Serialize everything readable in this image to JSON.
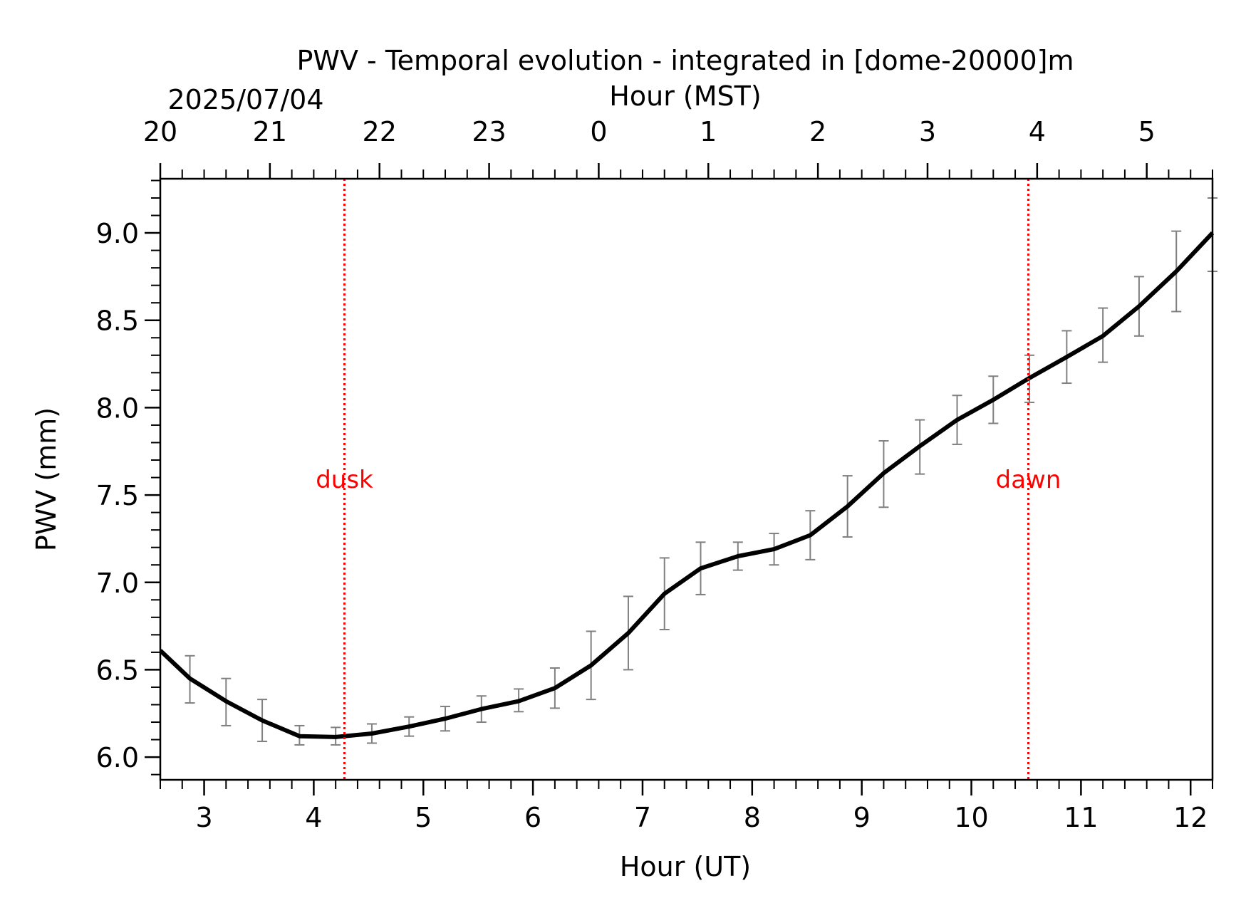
{
  "chart_data": {
    "type": "line",
    "title": "PWV - Temporal evolution - integrated in [dome-20000]m",
    "date_label": "2025/07/04",
    "xlabel": "Hour (UT)",
    "xlabel_top": "Hour (MST)",
    "ylabel": "PWV (mm)",
    "xlim": [
      2.6,
      12.2
    ],
    "ylim": [
      5.87,
      9.31
    ],
    "x_ticks": [
      3,
      4,
      5,
      6,
      7,
      8,
      9,
      10,
      11,
      12
    ],
    "x_tick_labels": [
      "3",
      "4",
      "5",
      "6",
      "7",
      "8",
      "9",
      "10",
      "11",
      "12"
    ],
    "top_ticks_ut": [
      2.6,
      3.6,
      4.6,
      5.6,
      6.6,
      7.6,
      8.6,
      9.6,
      10.6,
      11.6
    ],
    "top_tick_labels": [
      "20",
      "21",
      "22",
      "23",
      "0",
      "1",
      "2",
      "3",
      "4",
      "5"
    ],
    "y_ticks": [
      6.0,
      6.5,
      7.0,
      7.5,
      8.0,
      8.5,
      9.0
    ],
    "y_tick_labels": [
      "6.0",
      "6.5",
      "7.0",
      "7.5",
      "8.0",
      "8.5",
      "9.0"
    ],
    "series": [
      {
        "x": [
          2.6,
          2.87,
          3.2,
          3.53,
          3.87,
          4.2,
          4.53,
          4.87,
          5.2,
          5.53,
          5.87,
          6.2,
          6.53,
          6.87,
          7.2,
          7.53,
          7.87,
          8.2,
          8.53,
          8.87,
          9.2,
          9.53,
          9.87,
          10.2,
          10.53,
          10.87,
          11.2,
          11.53,
          11.87,
          12.2
        ],
        "y": [
          6.61,
          6.45,
          6.32,
          6.21,
          6.12,
          6.115,
          6.135,
          6.175,
          6.22,
          6.275,
          6.32,
          6.395,
          6.525,
          6.71,
          6.935,
          7.08,
          7.15,
          7.19,
          7.27,
          7.435,
          7.625,
          7.78,
          7.93,
          8.045,
          8.17,
          8.29,
          8.41,
          8.58,
          8.78,
          9.0
        ],
        "y_low": [
          null,
          6.31,
          6.18,
          6.09,
          6.07,
          6.07,
          6.08,
          6.12,
          6.15,
          6.2,
          6.26,
          6.28,
          6.33,
          6.5,
          6.73,
          6.93,
          7.07,
          7.1,
          7.13,
          7.26,
          7.43,
          7.62,
          7.79,
          7.91,
          8.03,
          8.14,
          8.26,
          8.41,
          8.55,
          8.78
        ],
        "y_high": [
          null,
          6.58,
          6.45,
          6.33,
          6.18,
          6.17,
          6.19,
          6.23,
          6.29,
          6.35,
          6.39,
          6.51,
          6.72,
          6.92,
          7.14,
          7.23,
          7.23,
          7.28,
          7.41,
          7.61,
          7.81,
          7.93,
          8.07,
          8.18,
          8.3,
          8.44,
          8.57,
          8.75,
          9.01,
          9.2
        ]
      }
    ],
    "annotations": [
      {
        "label": "dusk",
        "x": 4.28,
        "y": 7.59
      },
      {
        "label": "dawn",
        "x": 10.52,
        "y": 7.59
      }
    ],
    "colors": {
      "line": "#000000",
      "errorbar": "#808080",
      "event_line": "#ff0000"
    },
    "grid": false
  }
}
